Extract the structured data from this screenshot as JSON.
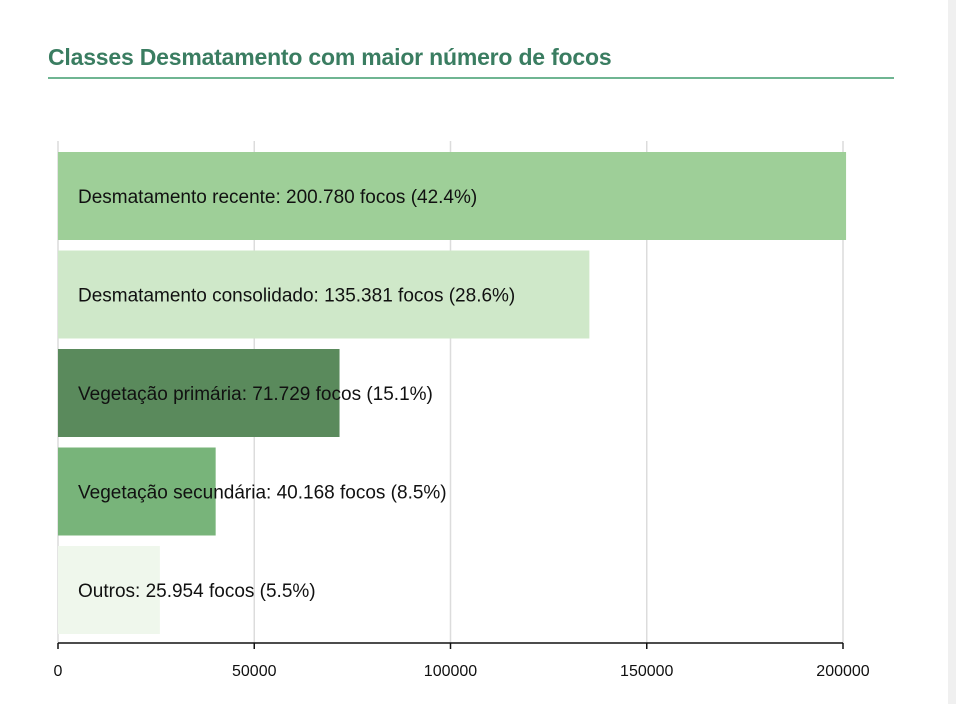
{
  "chart_data": {
    "type": "bar",
    "orientation": "horizontal",
    "title": "Classes Desmatamento com maior número de focos",
    "categories": [
      "Desmatamento recente",
      "Desmatamento consolidado",
      "Vegetação primária",
      "Vegetação secundária",
      "Outros"
    ],
    "values": [
      200780,
      135381,
      71729,
      40168,
      25954
    ],
    "labels": [
      "Desmatamento recente: 200.780 focos (42.4%)",
      "Desmatamento consolidado: 135.381 focos (28.6%)",
      "Vegetação primária: 71.729 focos (15.1%)",
      "Vegetação secundária: 40.168 focos (8.5%)",
      "Outros: 25.954 focos (5.5%)"
    ],
    "colors": [
      "#9ecf98",
      "#cfe8c9",
      "#5a8a5c",
      "#78b47a",
      "#eff7ec"
    ],
    "xlim": [
      0,
      200000
    ],
    "x_ticks": [
      0,
      50000,
      100000,
      150000,
      200000
    ],
    "x_tick_labels": [
      "0",
      "50000",
      "100000",
      "150000",
      "200000"
    ],
    "grid": true,
    "legend": "none"
  }
}
